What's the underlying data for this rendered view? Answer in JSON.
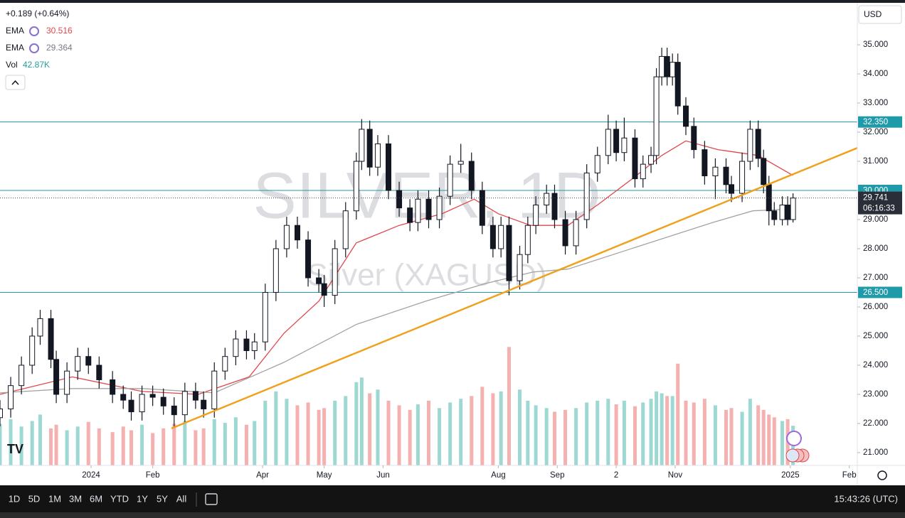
{
  "chart_data": {
    "type": "candlestick",
    "watermark": {
      "symbol": "SILVER, 1D",
      "description": "Silver (XAGUSD)"
    },
    "legend": {
      "change": "+0.189 (+0.64%)",
      "indicators": [
        {
          "name": "EMA",
          "value": "30.516"
        },
        {
          "name": "EMA",
          "value": "29.364"
        }
      ],
      "volume": {
        "name": "Vol",
        "value": "42.87K"
      }
    },
    "xlim": [
      0,
      320
    ],
    "ylim": [
      20.56,
      36.44
    ],
    "volume_lim": [
      0,
      500
    ],
    "grid": false,
    "up_color": "#ffffff",
    "down_color": "#131722",
    "outline_color": "#131722",
    "volume_up_color": "#9ed8d2",
    "volume_down_color": "#f5b0b0",
    "yticks": [
      {
        "value": 21,
        "label": "21.000"
      },
      {
        "value": 22,
        "label": "22.000"
      },
      {
        "value": 23,
        "label": "23.000"
      },
      {
        "value": 24,
        "label": "24.000"
      },
      {
        "value": 25,
        "label": "25.000"
      },
      {
        "value": 26,
        "label": "26.000"
      },
      {
        "value": 27,
        "label": "27.000"
      },
      {
        "value": 28,
        "label": "28.000"
      },
      {
        "value": 29,
        "label": "29.000"
      },
      {
        "value": 30,
        "label": "30.000"
      },
      {
        "value": 31,
        "label": "31.000"
      },
      {
        "value": 32,
        "label": "32.000"
      },
      {
        "value": 33,
        "label": "33.000"
      },
      {
        "value": 34,
        "label": "34.000"
      },
      {
        "value": 35,
        "label": "35.000"
      }
    ],
    "xticks": [
      {
        "value": 34,
        "label": "2024"
      },
      {
        "value": 57,
        "label": "Feb"
      },
      {
        "value": 98,
        "label": "Apr"
      },
      {
        "value": 121,
        "label": "May"
      },
      {
        "value": 143,
        "label": "Jun"
      },
      {
        "value": 186,
        "label": "Aug"
      },
      {
        "value": 208,
        "label": "Sep"
      },
      {
        "value": 230,
        "label": "2"
      },
      {
        "value": 252,
        "label": "Nov"
      },
      {
        "value": 295,
        "label": "2025"
      },
      {
        "value": 317,
        "label": "Feb"
      }
    ],
    "x": [
      0,
      4,
      8,
      12,
      15,
      19,
      21,
      25,
      29,
      33,
      37,
      42,
      46,
      49,
      53,
      57,
      61,
      65,
      69,
      73,
      76,
      80,
      84,
      88,
      92,
      95,
      99,
      103,
      107,
      111,
      115,
      119,
      121,
      125,
      129,
      133,
      135,
      138,
      141,
      145,
      149,
      153,
      156,
      160,
      164,
      168,
      172,
      176,
      180,
      184,
      187,
      190,
      194,
      197,
      200,
      204,
      207,
      211,
      215,
      219,
      223,
      227,
      230,
      233,
      237,
      240,
      243,
      245,
      247,
      249,
      251,
      253,
      256,
      259,
      263,
      267,
      271,
      273,
      277,
      280,
      283,
      285,
      287,
      289,
      292,
      294,
      296
    ],
    "open": [
      22.2,
      22.5,
      23.3,
      24.0,
      25.0,
      25.6,
      24.2,
      23.0,
      23.8,
      24.3,
      24.0,
      23.5,
      23.0,
      22.8,
      22.4,
      23.0,
      22.9,
      22.6,
      22.3,
      23.1,
      22.8,
      22.5,
      23.8,
      24.3,
      24.9,
      24.5,
      24.8,
      26.5,
      28.0,
      28.8,
      28.3,
      27.0,
      26.8,
      26.4,
      28.0,
      29.3,
      31.0,
      32.1,
      30.8,
      31.6,
      30.0,
      29.4,
      28.9,
      29.7,
      29.0,
      29.8,
      30.9,
      31.0,
      30.0,
      28.8,
      28.0,
      28.8,
      26.9,
      27.8,
      28.8,
      29.5,
      29.9,
      29.0,
      28.1,
      29.0,
      30.6,
      31.2,
      32.1,
      31.3,
      31.8,
      30.4,
      30.9,
      31.2,
      33.9,
      34.6,
      33.9,
      34.4,
      32.9,
      32.2,
      31.4,
      30.5,
      30.8,
      30.2,
      29.9,
      31.0,
      32.1,
      31.1,
      30.2,
      29.3,
      29.0,
      29.5,
      29.0
    ],
    "high": [
      22.8,
      23.6,
      24.3,
      25.3,
      25.9,
      25.9,
      24.5,
      24.1,
      24.6,
      24.6,
      24.3,
      23.8,
      23.3,
      23.1,
      23.3,
      23.3,
      23.2,
      22.9,
      23.4,
      23.4,
      23.1,
      24.1,
      24.6,
      25.2,
      25.2,
      25.1,
      26.8,
      28.3,
      29.1,
      29.1,
      28.6,
      27.3,
      27.1,
      28.3,
      29.6,
      31.3,
      32.45,
      32.4,
      31.9,
      31.9,
      30.3,
      29.7,
      30.0,
      30.0,
      30.1,
      31.2,
      31.6,
      31.3,
      30.3,
      29.1,
      29.1,
      29.1,
      28.1,
      29.1,
      29.8,
      30.2,
      30.2,
      29.3,
      29.3,
      30.9,
      31.5,
      32.6,
      32.4,
      32.5,
      32.1,
      31.2,
      31.5,
      34.2,
      34.9,
      34.9,
      34.7,
      34.7,
      33.2,
      32.5,
      31.7,
      31.1,
      31.1,
      30.5,
      31.3,
      32.4,
      32.4,
      31.4,
      30.5,
      29.6,
      29.8,
      29.8,
      29.9
    ],
    "low": [
      21.9,
      22.2,
      23.0,
      23.7,
      24.7,
      23.9,
      22.7,
      22.7,
      23.5,
      23.7,
      23.2,
      22.7,
      22.5,
      22.1,
      22.1,
      22.6,
      22.3,
      21.9,
      22.0,
      22.5,
      22.2,
      22.2,
      23.5,
      24.0,
      24.2,
      24.2,
      24.5,
      26.2,
      27.7,
      28.0,
      26.7,
      26.5,
      26.0,
      26.1,
      27.7,
      29.0,
      30.7,
      30.5,
      30.5,
      29.7,
      29.1,
      28.6,
      28.6,
      28.7,
      28.7,
      29.5,
      30.6,
      29.7,
      28.5,
      27.7,
      27.7,
      26.4,
      26.6,
      27.5,
      28.5,
      29.2,
      28.7,
      27.8,
      27.8,
      28.7,
      30.3,
      30.9,
      31.0,
      31.0,
      30.1,
      30.1,
      30.6,
      30.9,
      33.6,
      33.6,
      33.6,
      32.6,
      31.9,
      31.1,
      30.2,
      29.7,
      29.9,
      29.6,
      29.6,
      30.7,
      30.8,
      29.9,
      28.8,
      28.8,
      28.8,
      28.8,
      28.9
    ],
    "close": [
      22.5,
      23.3,
      24.0,
      25.0,
      25.6,
      24.2,
      23.0,
      23.8,
      24.3,
      24.0,
      23.5,
      23.0,
      22.8,
      22.4,
      23.0,
      22.9,
      22.6,
      22.3,
      23.1,
      22.8,
      22.5,
      23.8,
      24.3,
      24.9,
      24.5,
      24.8,
      26.5,
      28.0,
      28.8,
      28.3,
      27.0,
      26.8,
      26.4,
      28.0,
      29.3,
      31.0,
      32.1,
      30.8,
      31.6,
      30.0,
      29.4,
      28.9,
      29.7,
      29.0,
      29.8,
      30.9,
      31.0,
      30.0,
      28.8,
      28.0,
      28.8,
      26.9,
      27.8,
      28.8,
      29.5,
      29.9,
      29.0,
      28.1,
      29.0,
      30.6,
      31.2,
      32.1,
      31.3,
      31.8,
      30.4,
      30.9,
      31.2,
      33.9,
      34.6,
      33.9,
      34.4,
      32.9,
      32.2,
      31.4,
      30.5,
      30.8,
      30.2,
      29.9,
      31.0,
      32.1,
      31.1,
      30.2,
      29.3,
      29.0,
      29.5,
      29.0,
      29.74
    ],
    "volume": [
      45,
      50,
      42,
      48,
      55,
      40,
      44,
      38,
      42,
      47,
      40,
      36,
      42,
      38,
      44,
      35,
      40,
      45,
      48,
      38,
      40,
      50,
      46,
      52,
      44,
      48,
      70,
      80,
      72,
      65,
      68,
      60,
      62,
      70,
      75,
      90,
      95,
      78,
      82,
      70,
      65,
      60,
      66,
      70,
      62,
      68,
      72,
      75,
      85,
      78,
      80,
      128,
      82,
      70,
      65,
      62,
      58,
      60,
      62,
      68,
      70,
      72,
      66,
      70,
      64,
      68,
      72,
      80,
      78,
      75,
      75,
      110,
      70,
      68,
      72,
      65,
      60,
      62,
      58,
      72,
      65,
      60,
      55,
      52,
      48,
      50,
      42.87
    ],
    "ema": [
      {
        "color": "#e0474c",
        "x": [
          0,
          27,
          53,
          74,
          93,
          106,
          119,
          133,
          149,
          165,
          177,
          186,
          198,
          212,
          223,
          236,
          247,
          256,
          268,
          283,
          296
        ],
        "values": [
          23.0,
          23.6,
          23.1,
          23.0,
          23.6,
          25.1,
          26.2,
          28.2,
          28.8,
          29.2,
          29.7,
          29.2,
          28.8,
          28.8,
          29.5,
          30.4,
          31.2,
          31.7,
          31.4,
          31.2,
          30.516
        ]
      },
      {
        "color": "#a3a3a3",
        "x": [
          0,
          27,
          53,
          80,
          106,
          133,
          159,
          181,
          199,
          212,
          239,
          266,
          281,
          296
        ],
        "values": [
          23.05,
          23.2,
          23.2,
          23.05,
          24.1,
          25.4,
          26.2,
          26.8,
          27.2,
          27.3,
          28.1,
          28.9,
          29.3,
          29.364
        ]
      }
    ],
    "trendline": {
      "color": "#f0a11c",
      "x": [
        64,
        320
      ],
      "values": [
        21.83,
        31.46
      ]
    },
    "level_color": "#1f9aa8",
    "levels": [
      {
        "value": 32.35,
        "label": "32.350"
      },
      {
        "value": 30,
        "label": "30.000"
      },
      {
        "value": 26.5,
        "label": "26.500"
      }
    ],
    "last_price": {
      "value": 29.741,
      "label": "29.741",
      "countdown": "06:16:33"
    }
  },
  "ui": {
    "currency": "USD",
    "periods": [
      "1D",
      "5D",
      "1M",
      "3M",
      "6M",
      "YTD",
      "1Y",
      "5Y",
      "All"
    ],
    "clock": "15:43:26 (UTC)"
  }
}
